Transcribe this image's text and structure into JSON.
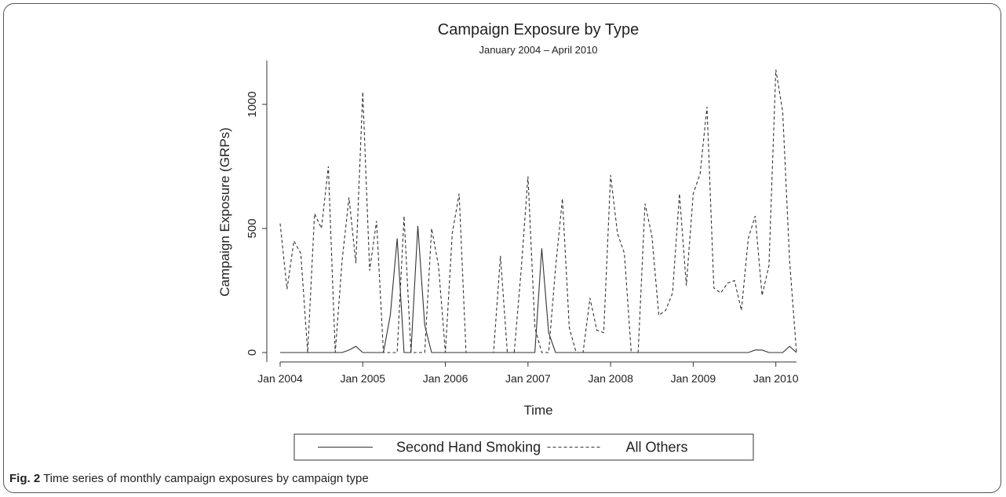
{
  "chart_data": {
    "type": "line",
    "title": "Campaign Exposure by Type",
    "subtitle": "January 2004 – April 2010",
    "x_label": "Time",
    "y_label": "Campaign Exposure (GRPs)",
    "x": [
      "2004-01",
      "2004-02",
      "2004-03",
      "2004-04",
      "2004-05",
      "2004-06",
      "2004-07",
      "2004-08",
      "2004-09",
      "2004-10",
      "2004-11",
      "2004-12",
      "2005-01",
      "2005-02",
      "2005-03",
      "2005-04",
      "2005-05",
      "2005-06",
      "2005-07",
      "2005-08",
      "2005-09",
      "2005-10",
      "2005-11",
      "2005-12",
      "2006-01",
      "2006-02",
      "2006-03",
      "2006-04",
      "2006-05",
      "2006-06",
      "2006-07",
      "2006-08",
      "2006-09",
      "2006-10",
      "2006-11",
      "2006-12",
      "2007-01",
      "2007-02",
      "2007-03",
      "2007-04",
      "2007-05",
      "2007-06",
      "2007-07",
      "2007-08",
      "2007-09",
      "2007-10",
      "2007-11",
      "2007-12",
      "2008-01",
      "2008-02",
      "2008-03",
      "2008-04",
      "2008-05",
      "2008-06",
      "2008-07",
      "2008-08",
      "2008-09",
      "2008-10",
      "2008-11",
      "2008-12",
      "2009-01",
      "2009-02",
      "2009-03",
      "2009-04",
      "2009-05",
      "2009-06",
      "2009-07",
      "2009-08",
      "2009-09",
      "2009-10",
      "2009-11",
      "2009-12",
      "2010-01",
      "2010-02",
      "2010-03",
      "2010-04"
    ],
    "series": [
      {
        "name": "Second Hand Smoking",
        "color": "#333333",
        "line_style": "solid",
        "values": [
          0,
          0,
          0,
          0,
          0,
          0,
          0,
          0,
          0,
          0,
          10,
          25,
          0,
          0,
          0,
          0,
          150,
          460,
          0,
          0,
          510,
          110,
          0,
          0,
          0,
          0,
          0,
          0,
          0,
          0,
          0,
          0,
          0,
          0,
          0,
          0,
          0,
          0,
          420,
          80,
          0,
          0,
          0,
          0,
          0,
          0,
          0,
          0,
          0,
          0,
          0,
          0,
          0,
          0,
          0,
          0,
          0,
          0,
          0,
          0,
          0,
          0,
          0,
          0,
          0,
          0,
          0,
          0,
          0,
          10,
          10,
          0,
          0,
          0,
          25,
          0
        ]
      },
      {
        "name": "All Others",
        "color": "#333333",
        "line_style": "dashed",
        "values": [
          520,
          255,
          450,
          400,
          0,
          560,
          500,
          750,
          0,
          370,
          625,
          360,
          1050,
          330,
          530,
          0,
          0,
          0,
          550,
          0,
          0,
          0,
          500,
          350,
          0,
          480,
          640,
          0,
          0,
          0,
          0,
          0,
          390,
          0,
          0,
          330,
          710,
          100,
          0,
          0,
          340,
          620,
          100,
          0,
          0,
          220,
          90,
          80,
          715,
          480,
          400,
          0,
          0,
          600,
          470,
          150,
          170,
          240,
          640,
          270,
          640,
          720,
          990,
          260,
          240,
          280,
          290,
          170,
          460,
          550,
          230,
          350,
          1140,
          970,
          370,
          0
        ]
      }
    ],
    "xlim": [
      "2004-01",
      "2010-04"
    ],
    "xticks": [
      {
        "value": "2004-01",
        "label": "Jan 2004"
      },
      {
        "value": "2005-01",
        "label": "Jan 2005"
      },
      {
        "value": "2006-01",
        "label": "Jan 2006"
      },
      {
        "value": "2007-01",
        "label": "Jan 2007"
      },
      {
        "value": "2008-01",
        "label": "Jan 2008"
      },
      {
        "value": "2009-01",
        "label": "Jan 2009"
      },
      {
        "value": "2010-01",
        "label": "Jan 2010"
      }
    ],
    "ylim": [
      -38,
      1177
    ],
    "yticks": [
      0,
      500,
      1000
    ],
    "grid": false,
    "legend": "bottom"
  },
  "caption_label": "Fig. 2",
  "caption_text": "Time series of monthly campaign exposures by campaign type"
}
